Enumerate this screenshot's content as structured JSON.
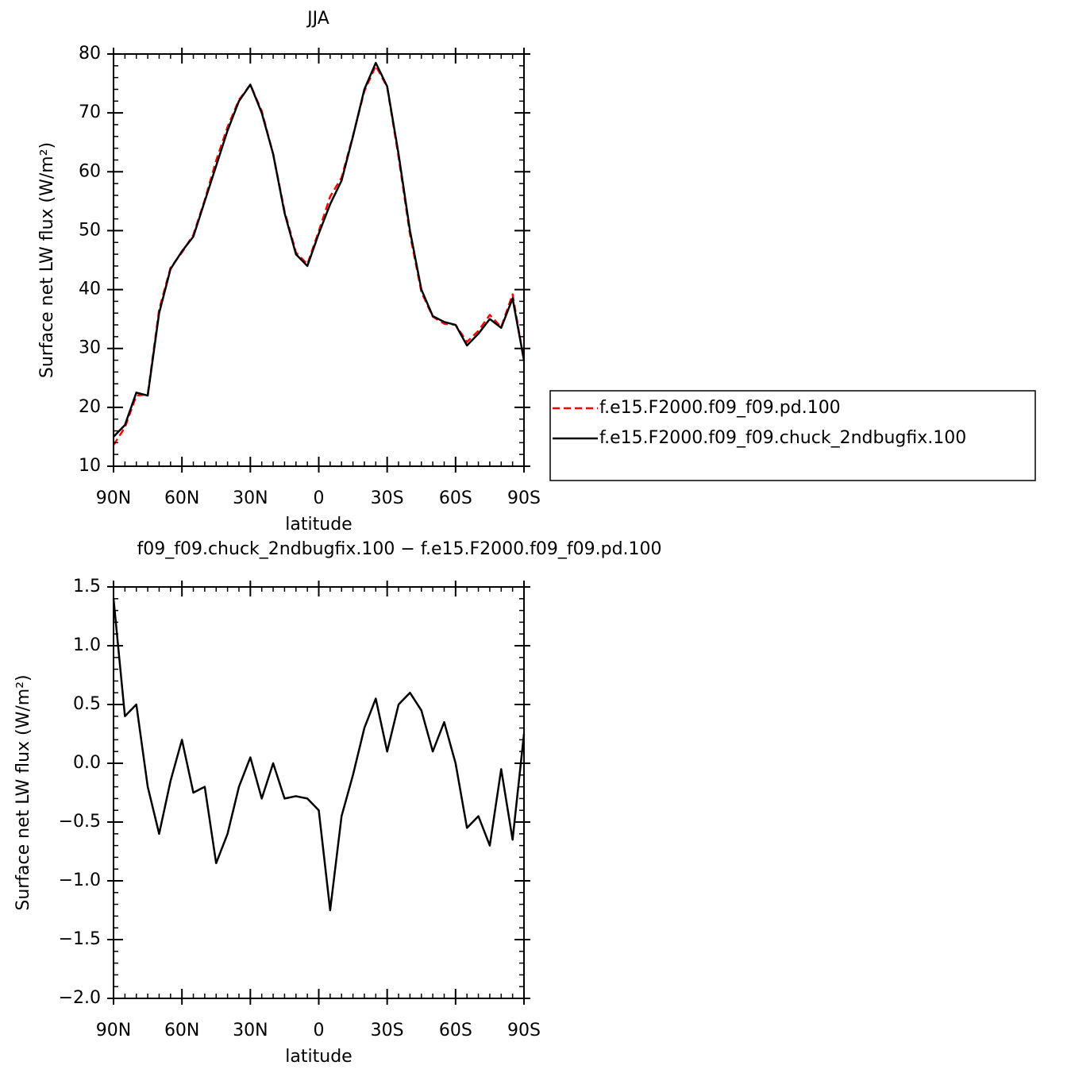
{
  "chart_data": [
    {
      "type": "line",
      "title": "JJA",
      "xlabel": "latitude",
      "ylabel": "Surface net LW flux (W/m²)",
      "x": [
        90,
        85,
        80,
        75,
        70,
        65,
        60,
        55,
        50,
        45,
        40,
        35,
        30,
        25,
        20,
        15,
        10,
        5,
        0,
        -5,
        -10,
        -15,
        -20,
        -25,
        -30,
        -35,
        -40,
        -45,
        -50,
        -55,
        -60,
        -65,
        -70,
        -75,
        -80,
        -85,
        -90
      ],
      "xlim": [
        90,
        -90
      ],
      "xticks": [
        {
          "value": 90,
          "label": "90N"
        },
        {
          "value": 60,
          "label": "60N"
        },
        {
          "value": 30,
          "label": "30N"
        },
        0,
        {
          "value": -30,
          "label": "30S"
        },
        {
          "value": -60,
          "label": "60S"
        },
        {
          "value": -90,
          "label": "90S"
        }
      ],
      "ylim": [
        10,
        80
      ],
      "yticks": [
        10,
        20,
        30,
        40,
        50,
        60,
        70,
        80
      ],
      "legend": "right",
      "series": [
        {
          "name": "f.e15.F2000.f09_f09.pd.100",
          "color": "#ff0000",
          "dash": true,
          "values": [
            13.6,
            16.6,
            22.0,
            22.2,
            36.6,
            43.7,
            46.3,
            49.3,
            55.2,
            61.9,
            67.6,
            72.2,
            74.8,
            70.3,
            63,
            53.3,
            46.3,
            44.3,
            49.9,
            55.8,
            59.0,
            66.1,
            73.7,
            78.0,
            74.4,
            62.5,
            49.4,
            39.6,
            35.4,
            34.2,
            34,
            31.1,
            33.0,
            35.7,
            33.6,
            39.2,
            27.8
          ]
        },
        {
          "name": "f.e15.F2000.f09_f09.chuck_2ndbugfix.100",
          "color": "#000000",
          "dash": false,
          "values": [
            15,
            17,
            22.5,
            22,
            36,
            43.5,
            46.5,
            49,
            55,
            61,
            67,
            72,
            74.8,
            70,
            63,
            53,
            46,
            44,
            49.5,
            54.5,
            58.5,
            66,
            74,
            78.5,
            74.5,
            63,
            50,
            40,
            35.5,
            34.5,
            34,
            30.5,
            32.5,
            35,
            33.5,
            38.5,
            28
          ]
        }
      ]
    },
    {
      "type": "line",
      "title": "f09_f09.chuck_2ndbugfix.100 − f.e15.F2000.f09_f09.pd.100",
      "xlabel": "latitude",
      "ylabel": "Surface net LW flux (W/m²)",
      "x": [
        90,
        85,
        80,
        75,
        70,
        65,
        60,
        55,
        50,
        45,
        40,
        35,
        30,
        25,
        20,
        15,
        10,
        5,
        0,
        -5,
        -10,
        -15,
        -20,
        -25,
        -30,
        -35,
        -40,
        -45,
        -50,
        -55,
        -60,
        -65,
        -70,
        -75,
        -80,
        -85,
        -90
      ],
      "xlim": [
        90,
        -90
      ],
      "xticks": [
        {
          "value": 90,
          "label": "90N"
        },
        {
          "value": 60,
          "label": "60N"
        },
        {
          "value": 30,
          "label": "30N"
        },
        0,
        {
          "value": -30,
          "label": "30S"
        },
        {
          "value": -60,
          "label": "60S"
        },
        {
          "value": -90,
          "label": "90S"
        }
      ],
      "ylim": [
        -2.0,
        1.5
      ],
      "yticks": [
        {
          "value": -2.0,
          "label": "−2.0"
        },
        {
          "value": -1.5,
          "label": "−1.5"
        },
        {
          "value": -1.0,
          "label": "−1.0"
        },
        {
          "value": -0.5,
          "label": "−0.5"
        },
        {
          "value": 0,
          "label": "0.0"
        },
        0.5,
        {
          "value": 1.0,
          "label": "1.0"
        },
        1.5
      ],
      "color": "#000000",
      "values": [
        1.4,
        0.4,
        0.5,
        -0.2,
        -0.6,
        -0.15,
        0.2,
        -0.25,
        -0.2,
        -0.85,
        -0.6,
        -0.2,
        0.05,
        -0.3,
        0.0,
        -0.3,
        -0.28,
        -0.3,
        -0.4,
        -1.25,
        -0.45,
        -0.1,
        0.3,
        0.55,
        0.1,
        0.5,
        0.6,
        0.45,
        0.1,
        0.35,
        0.0,
        -0.55,
        -0.45,
        -0.7,
        -0.05,
        -0.65,
        0.25
      ]
    }
  ]
}
